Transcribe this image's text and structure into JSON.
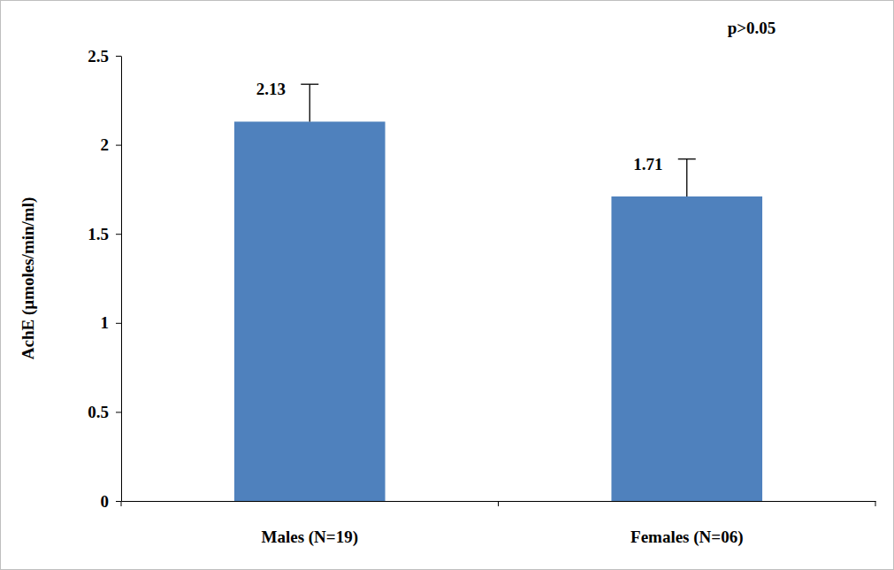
{
  "chart_data": {
    "type": "bar",
    "categories": [
      "Males (N=19)",
      "Females (N=06)"
    ],
    "values": [
      2.13,
      1.71
    ],
    "errors": [
      0.21,
      0.21
    ],
    "color": "#4f81bd",
    "y_label": "AchE (µmoles/min/ml)",
    "annotation": "p>0.05",
    "ylim": [
      0,
      2.5
    ],
    "yticks": [
      0,
      0.5,
      1,
      1.5,
      2,
      2.5
    ],
    "data_labels": true
  }
}
